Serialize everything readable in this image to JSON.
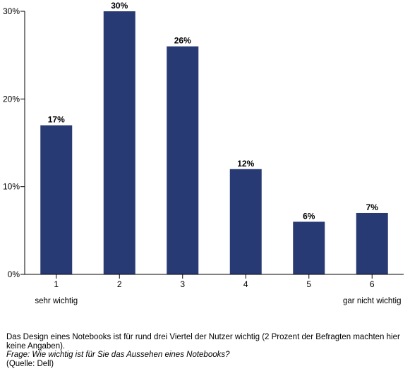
{
  "chart_data": {
    "type": "bar",
    "categories": [
      "1",
      "2",
      "3",
      "4",
      "5",
      "6"
    ],
    "category_sublabels": [
      "sehr wichtig",
      "",
      "",
      "",
      "",
      "gar nicht wichtig"
    ],
    "values": [
      17,
      30,
      26,
      12,
      6,
      7
    ],
    "data_labels": [
      "17%",
      "30%",
      "26%",
      "12%",
      "6%",
      "7%"
    ],
    "yticks": [
      0,
      10,
      20,
      30
    ],
    "ytick_labels": [
      "0%",
      "10%",
      "20%",
      "30%"
    ],
    "ylim": [
      0,
      30
    ],
    "bar_color": "#283a74",
    "grid": false,
    "legend": "none"
  },
  "caption": {
    "line1": "Das Design eines Notebooks ist für rund drei Viertel der Nutzer wichtig (2 Prozent der Befragten machten hier keine Angaben).",
    "question": "Frage: Wie wichtig ist für Sie das Aussehen eines Notebooks?",
    "source": "(Quelle: Dell)"
  }
}
